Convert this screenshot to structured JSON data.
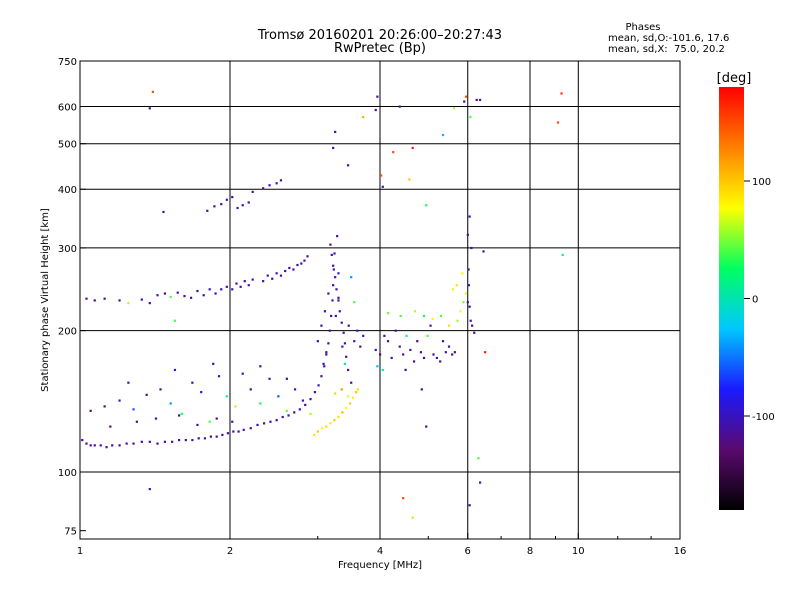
{
  "title": "Tromsø 20160201 20:26:00–20:27:43",
  "subtitle": "RwPretec (Bp)",
  "phases_box": {
    "header": "Phases",
    "line1": "mean, sd,O:-101.6, 17.6",
    "line2": "mean, sd,X:  75.0, 20.2"
  },
  "colorbar": {
    "label": "[deg]",
    "ticks": [
      "100",
      "0",
      "-100"
    ],
    "tick_values": [
      100,
      0,
      -100
    ],
    "range": [
      -180,
      180
    ],
    "stops": [
      "#000000",
      "#5a0a6e",
      "#1a1aff",
      "#00c8ff",
      "#00ff60",
      "#ffff00",
      "#ff8000",
      "#ff0000"
    ]
  },
  "chart_data": {
    "type": "scatter",
    "xlabel": "Frequency [MHz]",
    "ylabel": "Stationary phase Virtual Height [km]",
    "x_scale": "log",
    "y_scale": "log",
    "xlim": [
      1,
      16
    ],
    "ylim": [
      72,
      750
    ],
    "x_ticks": [
      1,
      2,
      4,
      6,
      8,
      10,
      16
    ],
    "x_tick_labels": [
      "1",
      "2",
      "4",
      "6",
      "8",
      "10",
      "16"
    ],
    "y_ticks": [
      75,
      100,
      200,
      300,
      400,
      500,
      600,
      750
    ],
    "y_tick_labels": [
      "75",
      "100",
      "200",
      "300",
      "400",
      "500",
      "600",
      "750"
    ],
    "grid": true,
    "v_grid": [
      2,
      4,
      6,
      8,
      10
    ],
    "h_grid": [
      100,
      200,
      300,
      400,
      500,
      600
    ],
    "points": [
      [
        1.01,
        117,
        -110
      ],
      [
        1.03,
        115,
        -120
      ],
      [
        1.05,
        114,
        -105
      ],
      [
        1.07,
        114,
        -115
      ],
      [
        1.1,
        114,
        -100
      ],
      [
        1.13,
        113,
        -118
      ],
      [
        1.16,
        114,
        -108
      ],
      [
        1.2,
        114,
        -112
      ],
      [
        1.24,
        115,
        -104
      ],
      [
        1.28,
        115,
        -122
      ],
      [
        1.33,
        116,
        -110
      ],
      [
        1.38,
        116,
        -100
      ],
      [
        1.43,
        115,
        -116
      ],
      [
        1.48,
        116,
        -106
      ],
      [
        1.53,
        116,
        -114
      ],
      [
        1.58,
        117,
        -102
      ],
      [
        1.63,
        117,
        -118
      ],
      [
        1.68,
        117,
        -108
      ],
      [
        1.73,
        118,
        -112
      ],
      [
        1.78,
        118,
        -100
      ],
      [
        1.83,
        119,
        -115
      ],
      [
        1.88,
        119,
        -105
      ],
      [
        1.93,
        120,
        -110
      ],
      [
        1.98,
        121,
        -118
      ],
      [
        2.03,
        122,
        -102
      ],
      [
        2.08,
        122,
        -112
      ],
      [
        2.13,
        123,
        -106
      ],
      [
        2.2,
        124,
        -114
      ],
      [
        2.27,
        126,
        -100
      ],
      [
        2.34,
        127,
        -116
      ],
      [
        2.41,
        128,
        -108
      ],
      [
        2.48,
        129,
        -112
      ],
      [
        2.55,
        131,
        -104
      ],
      [
        2.62,
        132,
        -110
      ],
      [
        2.69,
        134,
        -118
      ],
      [
        2.76,
        136,
        -102
      ],
      [
        2.83,
        139,
        -112
      ],
      [
        2.9,
        143,
        -106
      ],
      [
        2.96,
        148,
        -114
      ],
      [
        3.01,
        153,
        -100
      ],
      [
        3.05,
        160,
        -116
      ],
      [
        3.09,
        168,
        -108
      ],
      [
        3.12,
        178,
        -112
      ],
      [
        3.15,
        188,
        -104
      ],
      [
        3.17,
        200,
        -110
      ],
      [
        3.19,
        215,
        -118
      ],
      [
        3.21,
        232,
        -102
      ],
      [
        3.22,
        250,
        -112
      ],
      [
        3.23,
        270,
        -106
      ],
      [
        3.24,
        292,
        -114
      ],
      [
        1.05,
        135,
        -110
      ],
      [
        1.12,
        138,
        -125
      ],
      [
        1.2,
        142,
        -100
      ],
      [
        1.28,
        136,
        -60
      ],
      [
        1.36,
        146,
        -110
      ],
      [
        1.45,
        150,
        -120
      ],
      [
        1.52,
        140,
        -40
      ],
      [
        1.6,
        133,
        30
      ],
      [
        1.68,
        155,
        -105
      ],
      [
        1.75,
        148,
        -80
      ],
      [
        1.82,
        128,
        40
      ],
      [
        1.9,
        160,
        -110
      ],
      [
        1.97,
        145,
        20
      ],
      [
        2.05,
        138,
        60
      ],
      [
        2.12,
        162,
        -100
      ],
      [
        2.2,
        150,
        -115
      ],
      [
        2.3,
        140,
        30
      ],
      [
        2.4,
        158,
        -100
      ],
      [
        2.5,
        145,
        -60
      ],
      [
        2.6,
        135,
        50
      ],
      [
        2.7,
        150,
        -110
      ],
      [
        2.8,
        142,
        -105
      ],
      [
        2.9,
        133,
        60
      ],
      [
        1.15,
        125,
        -130
      ],
      [
        1.3,
        128,
        -115
      ],
      [
        1.42,
        130,
        -95
      ],
      [
        1.58,
        132,
        -118
      ],
      [
        1.72,
        126,
        -108
      ],
      [
        1.88,
        130,
        -112
      ],
      [
        2.02,
        128,
        -104
      ],
      [
        1.25,
        155,
        -110
      ],
      [
        1.55,
        165,
        -100
      ],
      [
        1.85,
        170,
        -115
      ],
      [
        2.3,
        168,
        -108
      ],
      [
        2.6,
        158,
        -112
      ],
      [
        2.95,
        120,
        90
      ],
      [
        3.0,
        122,
        100
      ],
      [
        3.06,
        124,
        80
      ],
      [
        3.12,
        125,
        95
      ],
      [
        3.18,
        127,
        85
      ],
      [
        3.24,
        129,
        100
      ],
      [
        3.3,
        131,
        90
      ],
      [
        3.36,
        134,
        105
      ],
      [
        3.42,
        137,
        80
      ],
      [
        3.48,
        140,
        95
      ],
      [
        3.53,
        144,
        85
      ],
      [
        3.58,
        148,
        100
      ],
      [
        3.61,
        150,
        90
      ],
      [
        3.45,
        145,
        70
      ],
      [
        3.35,
        150,
        120
      ],
      [
        3.25,
        147,
        60
      ],
      [
        3.18,
        305,
        -110
      ],
      [
        3.2,
        290,
        -100
      ],
      [
        3.22,
        275,
        -120
      ],
      [
        3.25,
        260,
        -115
      ],
      [
        3.27,
        245,
        -95
      ],
      [
        3.3,
        232,
        -108
      ],
      [
        3.32,
        220,
        -112
      ],
      [
        3.35,
        208,
        -104
      ],
      [
        3.38,
        198,
        -116
      ],
      [
        3.4,
        188,
        -110
      ],
      [
        3.42,
        176,
        -102
      ],
      [
        3.45,
        165,
        -118
      ],
      [
        3.5,
        155,
        -108
      ],
      [
        3.55,
        190,
        -90
      ],
      [
        3.6,
        200,
        -95
      ],
      [
        3.65,
        185,
        -112
      ],
      [
        3.7,
        195,
        -104
      ],
      [
        3.28,
        318,
        -110
      ],
      [
        3.3,
        265,
        -90
      ],
      [
        3.15,
        240,
        -118
      ],
      [
        3.1,
        220,
        -100
      ],
      [
        3.05,
        205,
        -112
      ],
      [
        3.0,
        190,
        -106
      ],
      [
        3.12,
        180,
        -114
      ],
      [
        3.08,
        170,
        -100
      ],
      [
        3.36,
        185,
        -85
      ],
      [
        3.4,
        170,
        10
      ],
      [
        3.46,
        205,
        -120
      ],
      [
        3.5,
        260,
        -40
      ],
      [
        3.55,
        230,
        40
      ],
      [
        3.3,
        235,
        -110
      ],
      [
        3.26,
        215,
        -102
      ],
      [
        1.03,
        234,
        -110
      ],
      [
        1.07,
        232,
        -118
      ],
      [
        1.12,
        234,
        -100
      ],
      [
        1.2,
        232,
        -112
      ],
      [
        1.25,
        229,
        60
      ],
      [
        1.33,
        233,
        -104
      ],
      [
        1.38,
        229,
        -116
      ],
      [
        1.43,
        238,
        -108
      ],
      [
        1.48,
        240,
        -112
      ],
      [
        1.52,
        236,
        40
      ],
      [
        1.57,
        241,
        -100
      ],
      [
        1.62,
        237,
        -115
      ],
      [
        1.67,
        235,
        -105
      ],
      [
        1.72,
        243,
        -110
      ],
      [
        1.77,
        238,
        -118
      ],
      [
        1.82,
        245,
        -102
      ],
      [
        1.87,
        240,
        -112
      ],
      [
        1.92,
        245,
        -106
      ],
      [
        1.97,
        248,
        -114
      ],
      [
        2.02,
        245,
        -100
      ],
      [
        2.06,
        252,
        -116
      ],
      [
        2.1,
        248,
        -108
      ],
      [
        2.14,
        255,
        -112
      ],
      [
        2.18,
        250,
        -104
      ],
      [
        2.22,
        257,
        -110
      ],
      [
        2.33,
        255,
        -118
      ],
      [
        2.38,
        262,
        -102
      ],
      [
        2.43,
        258,
        -112
      ],
      [
        2.48,
        265,
        -106
      ],
      [
        2.53,
        262,
        -114
      ],
      [
        2.58,
        268,
        -100
      ],
      [
        2.63,
        272,
        -116
      ],
      [
        2.68,
        270,
        -108
      ],
      [
        2.73,
        276,
        -112
      ],
      [
        2.78,
        278,
        -104
      ],
      [
        2.82,
        282,
        -110
      ],
      [
        2.86,
        288,
        -118
      ],
      [
        1.55,
        210,
        40
      ],
      [
        1.47,
        358,
        -115
      ],
      [
        1.8,
        360,
        -110
      ],
      [
        1.86,
        368,
        -105
      ],
      [
        1.92,
        372,
        -118
      ],
      [
        1.97,
        380,
        -108
      ],
      [
        2.02,
        385,
        -112
      ],
      [
        2.07,
        365,
        -100
      ],
      [
        2.12,
        370,
        -115
      ],
      [
        2.18,
        375,
        -105
      ],
      [
        2.22,
        395,
        -110
      ],
      [
        2.33,
        402,
        -118
      ],
      [
        2.4,
        408,
        -102
      ],
      [
        2.48,
        412,
        -112
      ],
      [
        2.53,
        418,
        -106
      ],
      [
        1.38,
        595,
        -115
      ],
      [
        1.4,
        645,
        150
      ],
      [
        3.22,
        490,
        -110
      ],
      [
        3.25,
        530,
        -115
      ],
      [
        3.45,
        450,
        -108
      ],
      [
        3.7,
        570,
        110
      ],
      [
        3.92,
        590,
        -112
      ],
      [
        3.95,
        630,
        -108
      ],
      [
        4.02,
        428,
        150
      ],
      [
        4.05,
        405,
        -105
      ],
      [
        4.25,
        480,
        150
      ],
      [
        4.38,
        600,
        -110
      ],
      [
        4.58,
        420,
        100
      ],
      [
        4.65,
        490,
        170
      ],
      [
        4.95,
        370,
        30
      ],
      [
        5.35,
        522,
        -30
      ],
      [
        5.63,
        595,
        60
      ],
      [
        5.9,
        615,
        -118
      ],
      [
        5.95,
        630,
        150
      ],
      [
        6.07,
        570,
        40
      ],
      [
        6.25,
        620,
        -110
      ],
      [
        6.35,
        620,
        -108
      ],
      [
        6.45,
        295,
        -110
      ],
      [
        6.5,
        180,
        170
      ],
      [
        9.1,
        555,
        150
      ],
      [
        9.25,
        640,
        160
      ],
      [
        9.3,
        290,
        20
      ],
      [
        3.92,
        182,
        -100
      ],
      [
        4.0,
        178,
        -115
      ],
      [
        4.08,
        195,
        -110
      ],
      [
        4.15,
        190,
        -120
      ],
      [
        4.22,
        175,
        -105
      ],
      [
        4.3,
        200,
        -118
      ],
      [
        4.38,
        185,
        -108
      ],
      [
        4.45,
        178,
        -112
      ],
      [
        4.52,
        195,
        30
      ],
      [
        4.6,
        182,
        -104
      ],
      [
        4.68,
        172,
        -110
      ],
      [
        4.75,
        190,
        -118
      ],
      [
        4.83,
        180,
        -102
      ],
      [
        4.9,
        175,
        -112
      ],
      [
        4.98,
        195,
        40
      ],
      [
        5.05,
        205,
        -106
      ],
      [
        5.12,
        178,
        -114
      ],
      [
        5.2,
        175,
        -100
      ],
      [
        5.28,
        172,
        -116
      ],
      [
        5.35,
        190,
        -108
      ],
      [
        5.42,
        180,
        -112
      ],
      [
        5.5,
        185,
        -104
      ],
      [
        5.58,
        178,
        -110
      ],
      [
        5.65,
        180,
        -118
      ],
      [
        5.72,
        210,
        60
      ],
      [
        5.8,
        220,
        80
      ],
      [
        5.88,
        230,
        50
      ],
      [
        5.95,
        240,
        70
      ],
      [
        5.5,
        205,
        90
      ],
      [
        5.3,
        215,
        40
      ],
      [
        5.1,
        212,
        80
      ],
      [
        4.9,
        215,
        30
      ],
      [
        4.7,
        220,
        60
      ],
      [
        4.4,
        215,
        40
      ],
      [
        4.15,
        218,
        50
      ],
      [
        3.95,
        168,
        -30
      ],
      [
        4.05,
        165,
        10
      ],
      [
        4.5,
        165,
        40
      ],
      [
        5.7,
        250,
        90
      ],
      [
        5.85,
        265,
        80
      ],
      [
        5.6,
        245,
        70
      ],
      [
        6.0,
        230,
        -110
      ],
      [
        6.0,
        320,
        -110
      ],
      [
        6.02,
        270,
        -115
      ],
      [
        6.03,
        250,
        -108
      ],
      [
        6.05,
        225,
        -112
      ],
      [
        6.08,
        210,
        -104
      ],
      [
        6.12,
        205,
        -110
      ],
      [
        6.18,
        198,
        -118
      ],
      [
        6.05,
        350,
        -105
      ],
      [
        6.1,
        300,
        -110
      ],
      [
        4.45,
        88,
        150
      ],
      [
        4.65,
        80,
        60
      ],
      [
        6.3,
        107,
        40
      ],
      [
        6.35,
        95,
        -110
      ],
      [
        6.05,
        85,
        -115
      ],
      [
        1.38,
        92,
        -110
      ],
      [
        4.85,
        150,
        -115
      ],
      [
        4.95,
        125,
        -110
      ],
      [
        4.5,
        165,
        -110
      ]
    ]
  }
}
